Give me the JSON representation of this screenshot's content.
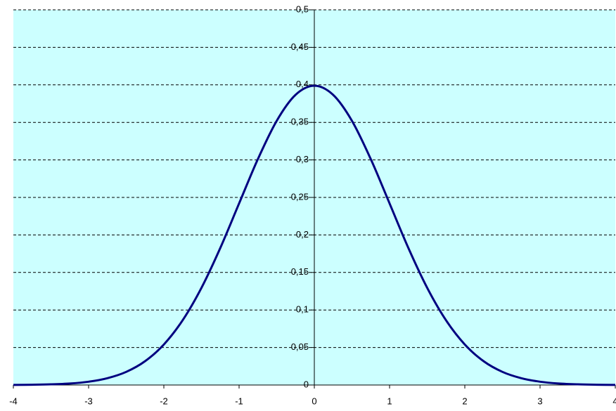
{
  "chart_data": {
    "type": "line",
    "x": [
      -4,
      -3.75,
      -3.5,
      -3.25,
      -3,
      -2.75,
      -2.5,
      -2.25,
      -2,
      -1.75,
      -1.5,
      -1.25,
      -1,
      -0.75,
      -0.5,
      -0.25,
      0,
      0.25,
      0.5,
      0.75,
      1,
      1.25,
      1.5,
      1.75,
      2,
      2.25,
      2.5,
      2.75,
      3,
      3.25,
      3.5,
      3.75,
      4
    ],
    "series": [
      {
        "color": "#000080",
        "values": [
          0.0001,
          0.0004,
          0.0009,
          0.002,
          0.0044,
          0.0091,
          0.0175,
          0.0317,
          0.054,
          0.0863,
          0.1295,
          0.1826,
          0.242,
          0.3011,
          0.3521,
          0.3867,
          0.3989,
          0.3867,
          0.3521,
          0.3011,
          0.242,
          0.1826,
          0.1295,
          0.0863,
          0.054,
          0.0317,
          0.0175,
          0.0091,
          0.0044,
          0.002,
          0.0009,
          0.0004,
          0.0001
        ]
      }
    ],
    "xlim": [
      -4,
      4
    ],
    "xticks": [
      -4,
      -3,
      -2,
      -1,
      0,
      1,
      2,
      3,
      4
    ],
    "ylim": [
      0,
      0.5
    ],
    "yticks": [
      0,
      {
        "value": 0.05,
        "label": "0,05"
      },
      {
        "value": 0.1,
        "label": "0,1"
      },
      {
        "value": 0.15,
        "label": "0,15"
      },
      {
        "value": 0.2,
        "label": "0,2"
      },
      {
        "value": 0.25,
        "label": "0,25"
      },
      {
        "value": 0.3,
        "label": "0,3"
      },
      {
        "value": 0.35,
        "label": "0,35"
      },
      {
        "value": 0.4,
        "label": "0,4"
      },
      {
        "value": 0.45,
        "label": "0,45"
      },
      {
        "value": 0.5,
        "label": "0,5"
      }
    ],
    "background": "#ccffff",
    "grid": true
  }
}
